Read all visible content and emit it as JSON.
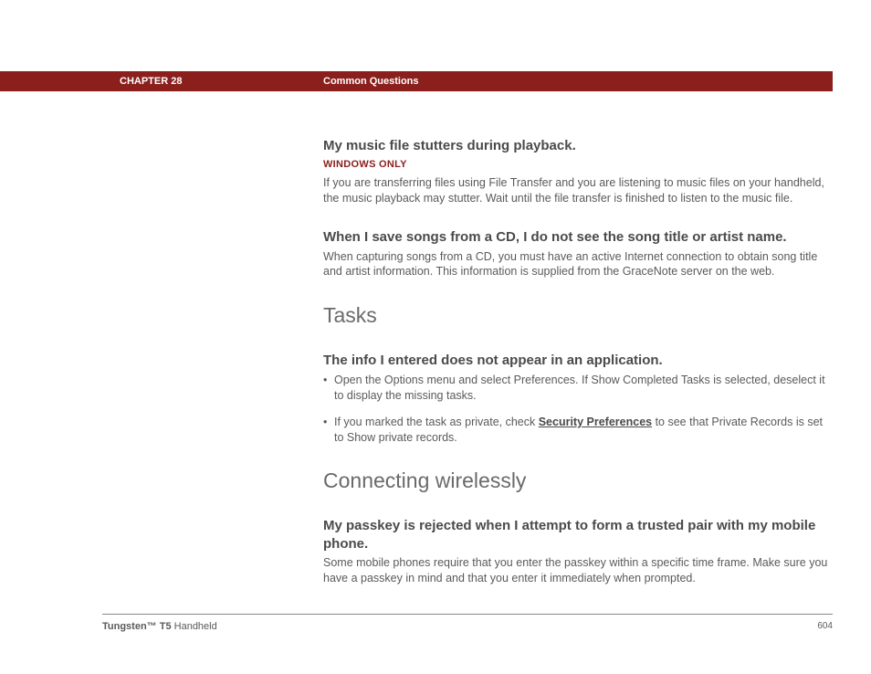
{
  "header": {
    "chapter": "CHAPTER 28",
    "section": "Common Questions",
    "bar_color": "#8a1f1c"
  },
  "q1": {
    "title": "My music file stutters during playback.",
    "tag": "WINDOWS ONLY",
    "body": "If you are transferring files using File Transfer and you are listening to music files on your handheld, the music playback may stutter. Wait until the file transfer is finished to listen to the music file."
  },
  "q2": {
    "title": "When I save songs from a CD, I do not see the song title or artist name.",
    "body": "When capturing songs from a CD, you must have an active Internet connection to obtain song title and artist information. This information is supplied from the GraceNote server on the web."
  },
  "tasks_heading": "Tasks",
  "q3": {
    "title": "The info I entered does not appear in an application.",
    "bullet1": "Open the Options menu and select Preferences. If Show Completed Tasks is selected, deselect it to display the missing tasks.",
    "bullet2_a": "If you marked the task as private, check ",
    "bullet2_link": "Security Preferences",
    "bullet2_b": " to see that Private Records is set to Show private records."
  },
  "connecting_heading": "Connecting wirelessly",
  "q4": {
    "title": "My passkey is rejected when I attempt to form a trusted pair with my mobile phone.",
    "body": "Some mobile phones require that you enter the passkey within a specific time frame. Make sure you have a passkey in mind and that you enter it immediately when prompted."
  },
  "footer": {
    "product_bold": "Tungsten™ T5",
    "product_rest": " Handheld",
    "page": "604"
  }
}
